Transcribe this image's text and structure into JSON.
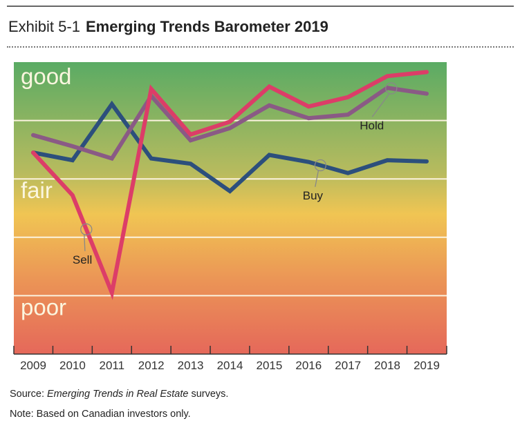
{
  "header": {
    "exhibit_number": "Exhibit 5-1",
    "title": "Emerging Trends Barometer 2019"
  },
  "chart_data": {
    "type": "line",
    "title": "Emerging Trends Barometer 2019",
    "xlabel": "",
    "ylabel": "",
    "x": [
      "2009",
      "2010",
      "2011",
      "2012",
      "2013",
      "2014",
      "2015",
      "2016",
      "2017",
      "2018",
      "2019"
    ],
    "ylim": [
      0,
      5
    ],
    "y_gridlines": [
      1,
      2,
      3,
      4
    ],
    "zone_labels": [
      {
        "label": "good",
        "value": 4.75
      },
      {
        "label": "fair",
        "value": 2.8
      },
      {
        "label": "poor",
        "value": 0.8
      }
    ],
    "background_gradient": [
      "#5aab64",
      "#b8bb5e",
      "#f0c553",
      "#eb9456",
      "#e5685a"
    ],
    "series": [
      {
        "name": "Sell",
        "color": "#dc3d68",
        "values": [
          3.45,
          2.72,
          1.05,
          4.54,
          3.76,
          3.98,
          4.58,
          4.24,
          4.4,
          4.76,
          4.83
        ]
      },
      {
        "name": "Hold",
        "color": "#8a5a85",
        "values": [
          3.75,
          3.56,
          3.35,
          4.42,
          3.66,
          3.87,
          4.26,
          4.04,
          4.1,
          4.56,
          4.46
        ]
      },
      {
        "name": "Buy",
        "color": "#2c4f7c",
        "values": [
          3.45,
          3.32,
          4.28,
          3.35,
          3.26,
          2.79,
          3.41,
          3.29,
          3.1,
          3.32,
          3.3
        ]
      }
    ],
    "annotations": [
      {
        "label": "Sell",
        "series": "Sell",
        "at_x": 1.35,
        "label_pos": [
          1.0,
          1.55
        ]
      },
      {
        "label": "Hold",
        "series": "Hold",
        "at_x": 9.1,
        "label_pos": [
          8.3,
          3.85
        ]
      },
      {
        "label": "Buy",
        "series": "Buy",
        "at_x": 7.3,
        "label_pos": [
          6.85,
          2.65
        ]
      }
    ],
    "grid": true,
    "legend": "inline-annotations"
  },
  "footer": {
    "source_prefix": "Source: ",
    "source_italic": "Emerging Trends in Real Estate",
    "source_suffix": " surveys.",
    "note": "Note: Based on Canadian investors only."
  }
}
